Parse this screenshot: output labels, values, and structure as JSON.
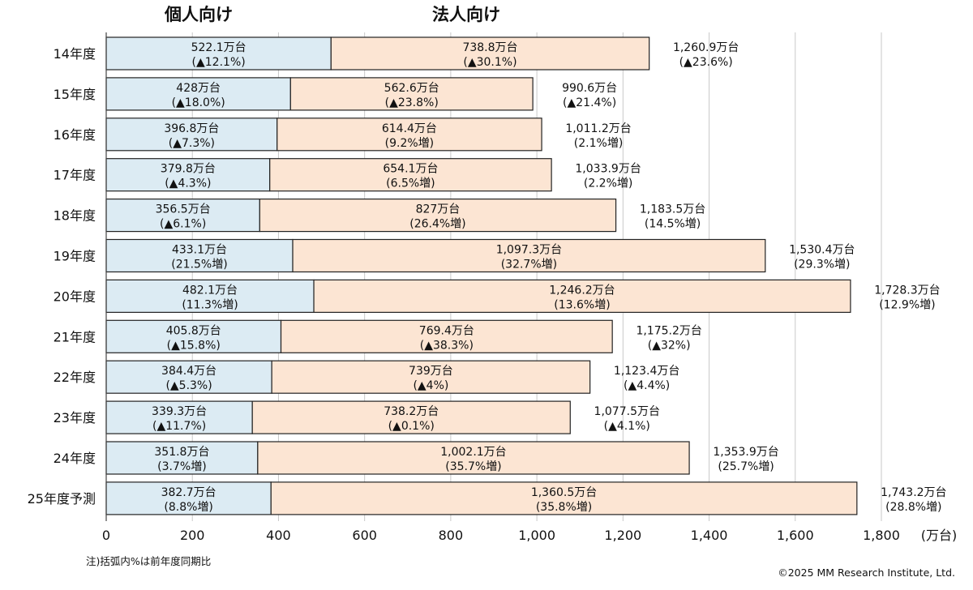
{
  "chart_data": {
    "type": "bar",
    "orientation": "horizontal",
    "stacked": true,
    "categories": [
      "14年度",
      "15年度",
      "16年度",
      "17年度",
      "18年度",
      "19年度",
      "20年度",
      "21年度",
      "22年度",
      "23年度",
      "24年度",
      "25年度予測"
    ],
    "series": [
      {
        "name": "個人向け",
        "color": "#dcebf3",
        "values": [
          522.1,
          428,
          396.8,
          379.8,
          356.5,
          433.1,
          482.1,
          405.8,
          384.4,
          339.3,
          351.8,
          382.7
        ],
        "labels": [
          "522.1万台",
          "428万台",
          "396.8万台",
          "379.8万台",
          "356.5万台",
          "433.1万台",
          "482.1万台",
          "405.8万台",
          "384.4万台",
          "339.3万台",
          "351.8万台",
          "382.7万台"
        ],
        "changes": [
          "(▲12.1%)",
          "(▲18.0%)",
          "(▲7.3%)",
          "(▲4.3%)",
          "(▲6.1%)",
          "(21.5%増)",
          "(11.3%増)",
          "(▲15.8%)",
          "(▲5.3%)",
          "(▲11.7%)",
          "(3.7%増)",
          "(8.8%増)"
        ]
      },
      {
        "name": "法人向け",
        "color": "#fce5d3",
        "values": [
          738.8,
          562.6,
          614.4,
          654.1,
          827,
          1097.3,
          1246.2,
          769.4,
          739,
          738.2,
          1002.1,
          1360.5
        ],
        "labels": [
          "738.8万台",
          "562.6万台",
          "614.4万台",
          "654.1万台",
          "827万台",
          "1,097.3万台",
          "1,246.2万台",
          "769.4万台",
          "739万台",
          "738.2万台",
          "1,002.1万台",
          "1,360.5万台"
        ],
        "changes": [
          "(▲30.1%)",
          "(▲23.8%)",
          "(9.2%増)",
          "(6.5%増)",
          "(26.4%増)",
          "(32.7%増)",
          "(13.6%増)",
          "(▲38.3%)",
          "(▲4%)",
          "(▲0.1%)",
          "(35.7%増)",
          "(35.8%増)"
        ]
      }
    ],
    "totals": {
      "values": [
        1260.9,
        990.6,
        1011.2,
        1033.9,
        1183.5,
        1530.4,
        1728.3,
        1175.2,
        1123.4,
        1077.5,
        1353.9,
        1743.2
      ],
      "labels": [
        "1,260.9万台",
        "990.6万台",
        "1,011.2万台",
        "1,033.9万台",
        "1,183.5万台",
        "1,530.4万台",
        "1,728.3万台",
        "1,175.2万台",
        "1,123.4万台",
        "1,077.5万台",
        "1,353.9万台",
        "1,743.2万台"
      ],
      "changes": [
        "(▲23.6%)",
        "(▲21.4%)",
        "(2.1%増)",
        "(2.2%増)",
        "(14.5%増)",
        "(29.3%増)",
        "(12.9%増)",
        "(▲32%)",
        "(▲4.4%)",
        "(▲4.1%)",
        "(25.7%増)",
        "(28.8%増)"
      ]
    },
    "xlim": [
      0,
      1800
    ],
    "xticks": [
      0,
      200,
      400,
      600,
      800,
      1000,
      1200,
      1400,
      1600,
      1800
    ],
    "xtick_labels": [
      "0",
      "200",
      "400",
      "600",
      "800",
      "1,000",
      "1,200",
      "1,400",
      "1,600",
      "1,800"
    ],
    "x_unit": "(万台)",
    "grid": "vertical",
    "legend": "top"
  },
  "footnote": "注)括弧内%は前年度同期比",
  "copyright": "©2025 MM Research Institute, Ltd."
}
